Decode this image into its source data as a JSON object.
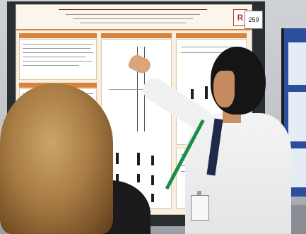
{
  "photo": {
    "description": "",
    "visible_text": {
      "board_number": "259",
      "poster_logo_letter": "R"
    },
    "colors": {
      "poster_accent": "#d9823b",
      "poster_background": "#f6efe2",
      "side_poster": "#2c4f9c",
      "lanyard": "#1e8c49"
    }
  }
}
